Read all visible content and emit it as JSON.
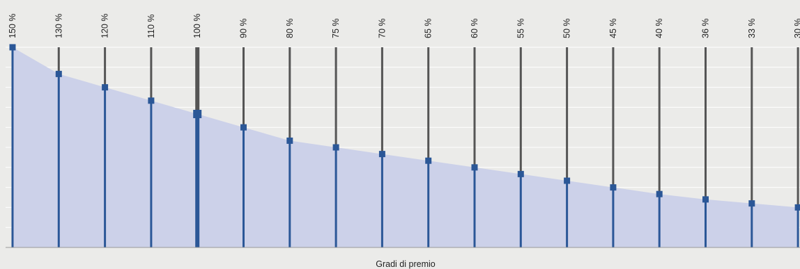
{
  "chart_data": {
    "type": "area",
    "title": "",
    "xlabel": "Gradi di premio",
    "ylabel": "",
    "categories": [
      "150 %",
      "130 %",
      "120 %",
      "110 %",
      "100 %",
      "90 %",
      "80 %",
      "75 %",
      "70 %",
      "65 %",
      "60 %",
      "55 %",
      "50 %",
      "45 %",
      "40 %",
      "36 %",
      "33 %",
      "30 %"
    ],
    "values": [
      150,
      130,
      120,
      110,
      100,
      90,
      80,
      75,
      70,
      65,
      60,
      55,
      50,
      45,
      40,
      36,
      33,
      30
    ],
    "highlight_category": "100 %",
    "ylim": [
      0,
      150
    ],
    "grid": true,
    "legend": "none",
    "colors": {
      "background": "#ebebe9",
      "area_fill": "#ccd1e9",
      "gridline": "#ffffff",
      "stem_upper": "#555555",
      "stem_lower": "#2b5797",
      "marker": "#2b5797",
      "axis": "#999999",
      "text": "#222222"
    }
  }
}
